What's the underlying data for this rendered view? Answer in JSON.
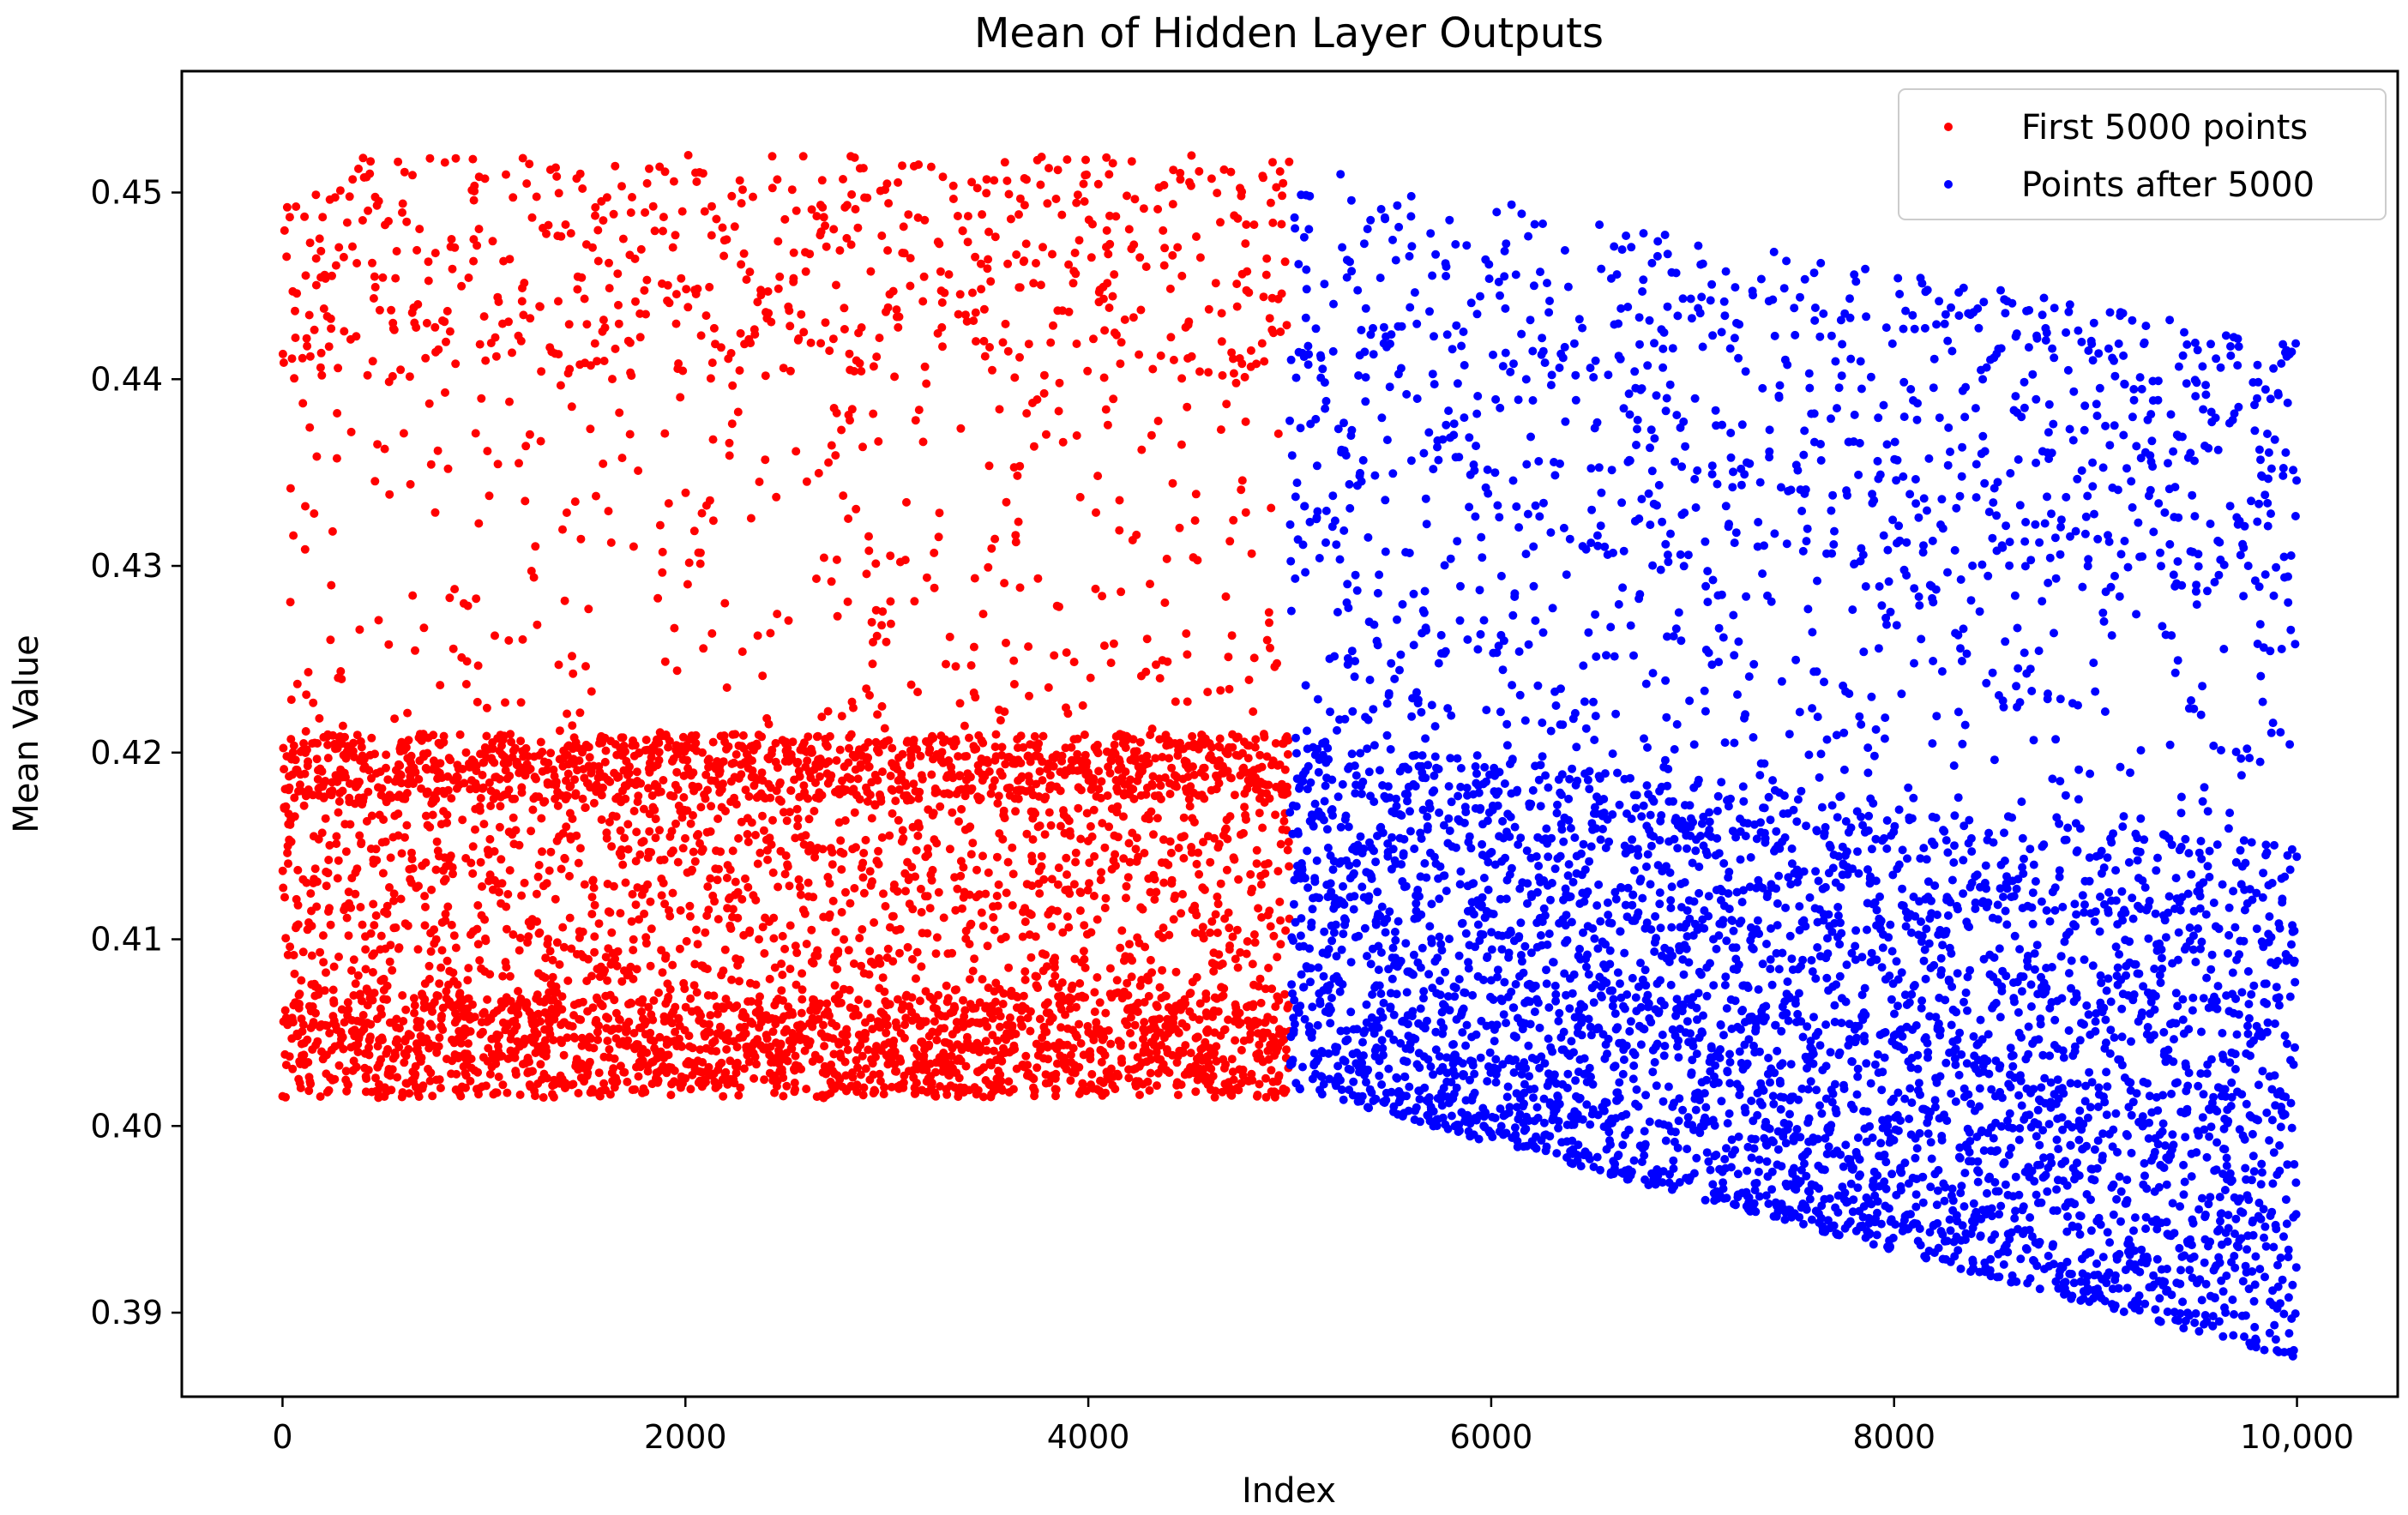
{
  "chart_data": {
    "type": "scatter",
    "title": "Mean of Hidden Layer Outputs",
    "xlabel": "Index",
    "ylabel": "Mean Value",
    "xlim": [
      -500,
      10500
    ],
    "ylim": [
      0.3855,
      0.4565
    ],
    "xticks": [
      0,
      2000,
      4000,
      6000,
      8000,
      10000
    ],
    "xtick_labels": [
      "0",
      "2000",
      "4000",
      "6000",
      "8000",
      "10,000"
    ],
    "yticks": [
      0.39,
      0.4,
      0.41,
      0.42,
      0.43,
      0.44,
      0.45
    ],
    "ytick_labels": [
      "0.39",
      "0.40",
      "0.41",
      "0.42",
      "0.43",
      "0.44",
      "0.45"
    ],
    "grid": false,
    "legend_position": "top-right",
    "series": [
      {
        "name": "First 5000 points",
        "color": "#ff0000",
        "x_range": [
          0,
          4999
        ],
        "n_points": 5000,
        "bands": [
          {
            "y_low": 0.4015,
            "y_high": 0.407,
            "weight": 0.34
          },
          {
            "y_low": 0.407,
            "y_high": 0.4175,
            "weight": 0.24
          },
          {
            "y_low": 0.4175,
            "y_high": 0.421,
            "weight": 0.22
          },
          {
            "y_low": 0.421,
            "y_high": 0.44,
            "weight": 0.07
          },
          {
            "y_low": 0.44,
            "y_high": 0.452,
            "weight": 0.13
          }
        ]
      },
      {
        "name": "Points after 5000",
        "color": "#0000ff",
        "x_range": [
          5000,
          9999
        ],
        "n_points": 5000,
        "lower_cluster": {
          "start": [
            0.402,
            0.421
          ],
          "end": [
            0.3875,
            0.415
          ],
          "weight": 0.74
        },
        "upper_cluster": {
          "start": [
            0.43,
            0.4515
          ],
          "end": [
            0.428,
            0.442
          ],
          "weight": 0.19
        },
        "sparse_middle": {
          "start": [
            0.421,
            0.43
          ],
          "end": [
            0.415,
            0.428
          ],
          "weight": 0.07
        }
      }
    ]
  }
}
